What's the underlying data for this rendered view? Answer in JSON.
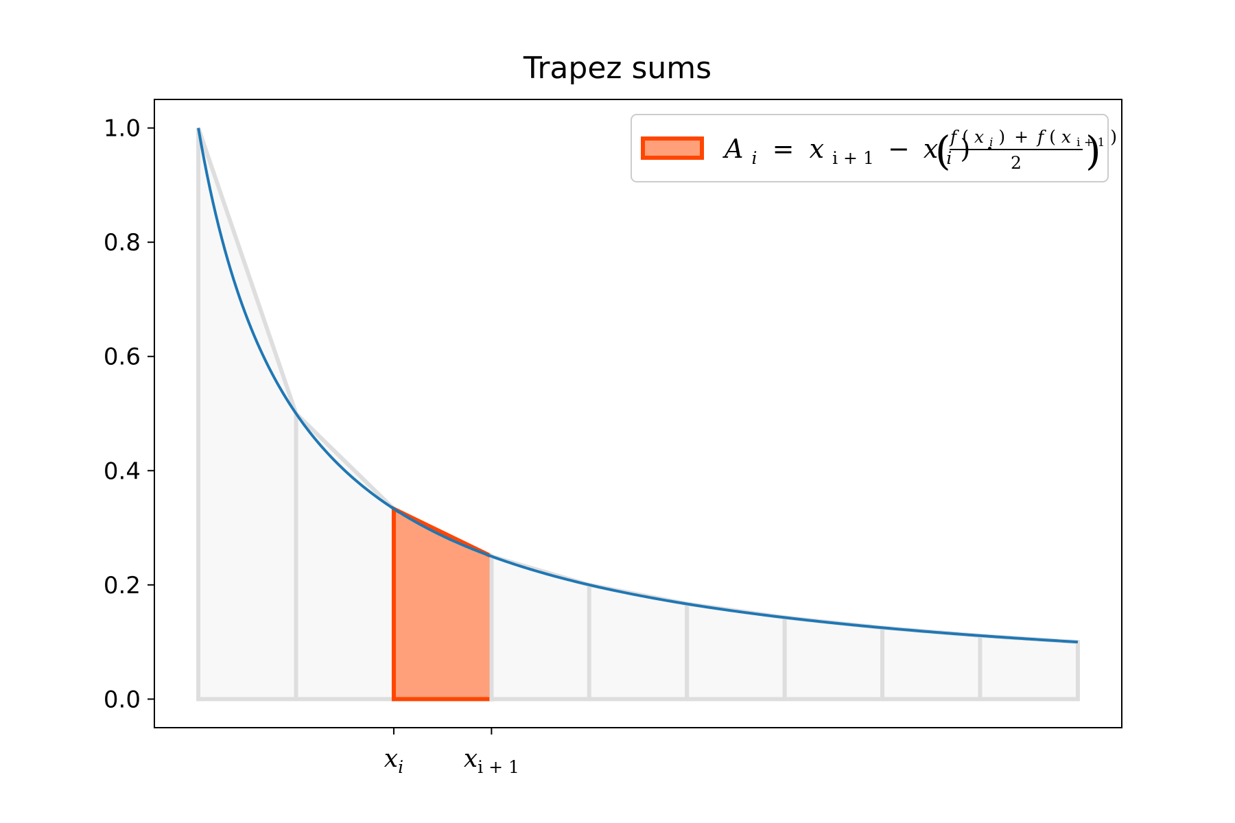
{
  "chart_data": {
    "type": "area",
    "title": "Trapez sums",
    "xlabel": "",
    "ylabel": "",
    "xlim": [
      0.55,
      10.45
    ],
    "ylim": [
      -0.05,
      1.05
    ],
    "grid": false,
    "legend_position": "upper right",
    "y_ticks": [
      {
        "value": 0.0,
        "label": "0.0"
      },
      {
        "value": 0.2,
        "label": "0.2"
      },
      {
        "value": 0.4,
        "label": "0.4"
      },
      {
        "value": 0.6,
        "label": "0.6"
      },
      {
        "value": 0.8,
        "label": "0.8"
      },
      {
        "value": 1.0,
        "label": "1.0"
      }
    ],
    "x_ticks": [
      {
        "value": 3,
        "label_main": "x",
        "label_sub": "i"
      },
      {
        "value": 4,
        "label_main": "x",
        "label_sub": "i + 1"
      }
    ],
    "trapezoid_nodes": {
      "x": [
        1,
        2,
        3,
        4,
        5,
        6,
        7,
        8,
        9,
        10
      ],
      "y": [
        1.0,
        0.5,
        0.333,
        0.25,
        0.2,
        0.167,
        0.143,
        0.125,
        0.111,
        0.1
      ]
    },
    "curve": {
      "function": "1/x",
      "x_range": [
        1,
        10
      ]
    },
    "highlighted_interval": [
      3,
      4
    ],
    "legend": {
      "A": "A",
      "i": "i",
      "x": "x",
      "i_plus_1": "i + 1",
      "eq": "=",
      "minus": "−",
      "close_paren": ")",
      "dot": "·",
      "f": "f",
      "open_paren": "(",
      "plus": "+",
      "two": "2"
    },
    "colors": {
      "curve": "#1f77b4",
      "highlight_fill": "#ffa07a",
      "highlight_edge": "#ff4500",
      "trapezoid_fill": "#f8f8f8",
      "trapezoid_edge": "#dedede",
      "axes": "#000000",
      "legend_frame": "#cccccc"
    }
  }
}
